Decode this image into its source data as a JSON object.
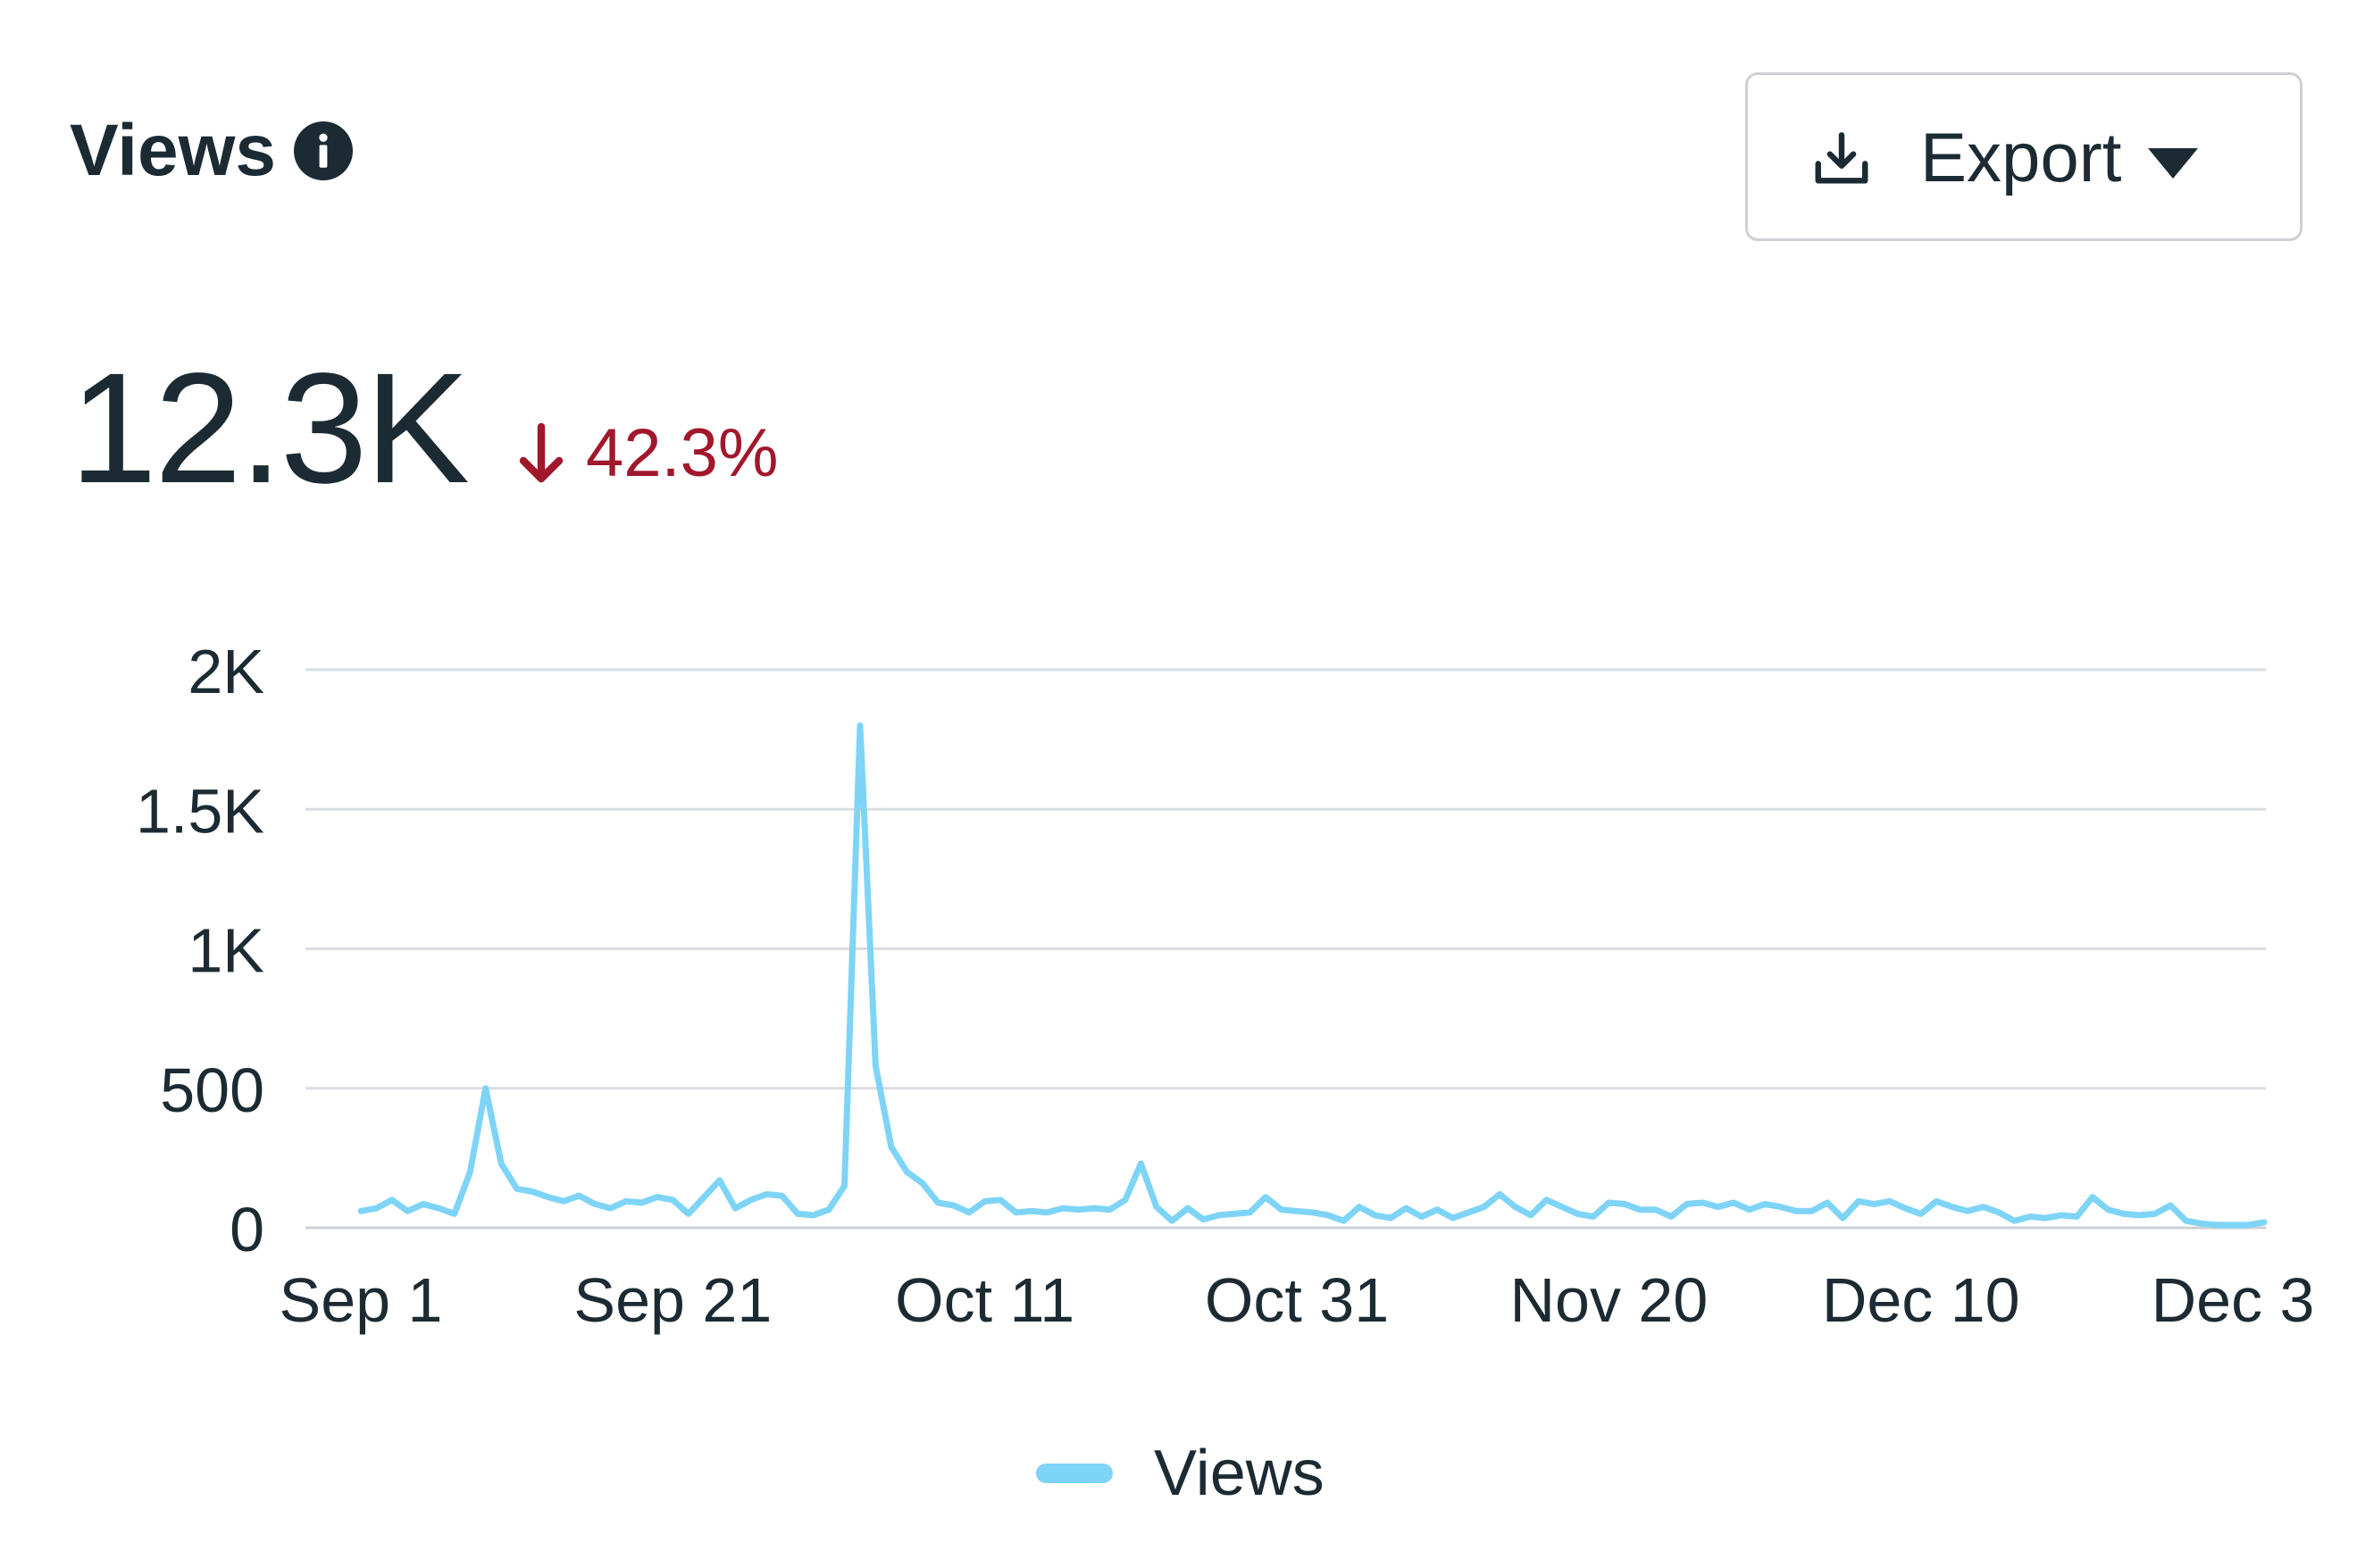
{
  "header": {
    "title": "Views",
    "info_icon": "info-icon"
  },
  "export_button": {
    "label": "Export",
    "icon": "download-icon",
    "caret": "caret-down-icon"
  },
  "kpi": {
    "value": "12.3K",
    "change": "42.3%",
    "direction": "down",
    "change_color": "#a1182c"
  },
  "colors": {
    "series": "#7ed4f7",
    "grid": "#dadde1",
    "text": "#1c2b33"
  },
  "legend": {
    "label": "Views"
  },
  "chart_data": {
    "type": "line",
    "title": "",
    "xlabel": "",
    "ylabel": "",
    "ylim": [
      0,
      2000
    ],
    "y_ticks": [
      {
        "value": 0,
        "label": "0"
      },
      {
        "value": 500,
        "label": "500"
      },
      {
        "value": 1000,
        "label": "1K"
      },
      {
        "value": 1500,
        "label": "1.5K"
      },
      {
        "value": 2000,
        "label": "2K"
      }
    ],
    "x_tick_labels": [
      "Sep 1",
      "Sep 21",
      "Oct 11",
      "Oct 31",
      "Nov 20",
      "Dec 10",
      "Dec 3"
    ],
    "grid": true,
    "legend_position": "bottom-center",
    "series": [
      {
        "name": "Views",
        "color": "#7ed4f7",
        "values": [
          60,
          70,
          100,
          60,
          85,
          70,
          50,
          200,
          500,
          230,
          140,
          130,
          110,
          95,
          115,
          85,
          70,
          95,
          90,
          110,
          100,
          50,
          110,
          170,
          70,
          100,
          120,
          115,
          50,
          45,
          65,
          150,
          1800,
          580,
          290,
          200,
          160,
          90,
          80,
          55,
          95,
          100,
          55,
          60,
          55,
          70,
          65,
          70,
          65,
          100,
          230,
          75,
          25,
          70,
          30,
          45,
          50,
          55,
          110,
          65,
          60,
          55,
          45,
          25,
          75,
          45,
          35,
          70,
          40,
          65,
          35,
          55,
          75,
          120,
          75,
          45,
          100,
          75,
          50,
          40,
          90,
          85,
          65,
          65,
          40,
          85,
          90,
          75,
          90,
          65,
          85,
          75,
          60,
          60,
          90,
          35,
          95,
          85,
          95,
          70,
          50,
          95,
          75,
          60,
          75,
          55,
          25,
          40,
          35,
          45,
          40,
          110,
          65,
          50,
          45,
          50,
          80,
          25,
          15,
          10,
          10,
          10,
          20
        ]
      }
    ]
  }
}
